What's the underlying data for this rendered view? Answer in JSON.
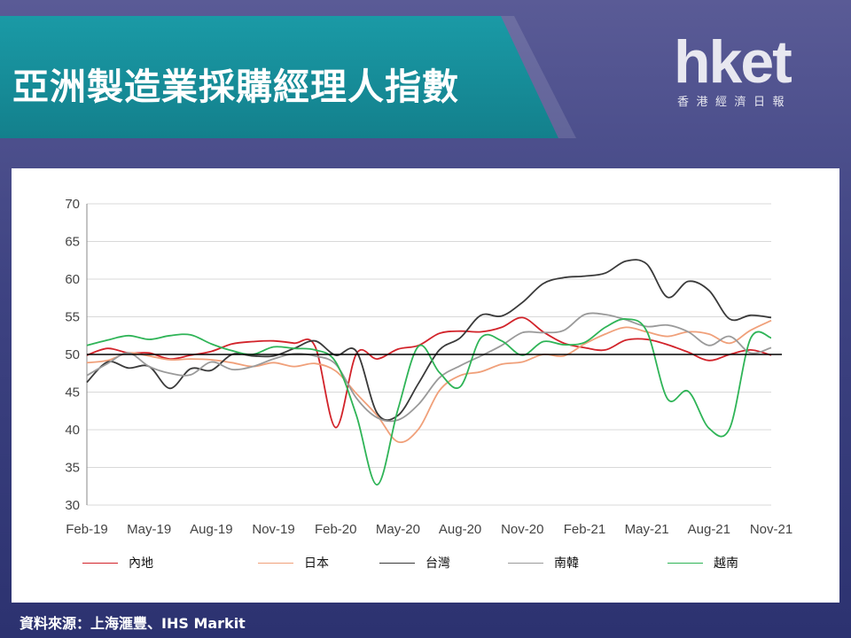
{
  "title": "亞洲製造業採購經理人指數",
  "logo": {
    "wordmark": "hket",
    "subtitle": "香港經濟日報"
  },
  "source": "資料來源：上海滙豐、IHS Markit",
  "colors": {
    "banner": "#1a9aa6",
    "background": "#3e4382",
    "china": "#d2232a",
    "japan": "#f0a07a",
    "taiwan": "#3a3a3a",
    "korea": "#9a9a9a",
    "vietnam": "#2fb457",
    "reference_line": "#000000"
  },
  "chart_data": {
    "type": "line",
    "title": "",
    "xlabel": "",
    "ylabel": "",
    "ylim": [
      30,
      70
    ],
    "yticks": [
      30,
      35,
      40,
      45,
      50,
      55,
      60,
      65,
      70
    ],
    "grid": true,
    "reference_line": 50,
    "legend_position": "bottom",
    "x": [
      "Feb-19",
      "Mar-19",
      "Apr-19",
      "May-19",
      "Jun-19",
      "Jul-19",
      "Aug-19",
      "Sep-19",
      "Oct-19",
      "Nov-19",
      "Dec-19",
      "Jan-20",
      "Feb-20",
      "Mar-20",
      "Apr-20",
      "May-20",
      "Jun-20",
      "Jul-20",
      "Aug-20",
      "Sep-20",
      "Oct-20",
      "Nov-20",
      "Dec-20",
      "Jan-21",
      "Feb-21",
      "Mar-21",
      "Apr-21",
      "May-21",
      "Jun-21",
      "Jul-21",
      "Aug-21",
      "Sep-21",
      "Oct-21",
      "Nov-21"
    ],
    "xtick_labels": [
      "Feb-19",
      "May-19",
      "Aug-19",
      "Nov-19",
      "Feb-20",
      "May-20",
      "Aug-20",
      "Nov-20",
      "Feb-21",
      "May-21",
      "Aug-21",
      "Nov-21"
    ],
    "series": [
      {
        "name": "內地",
        "color": "#d2232a",
        "values": [
          49.9,
          50.8,
          50.2,
          50.2,
          49.4,
          49.9,
          50.4,
          51.4,
          51.7,
          51.8,
          51.5,
          51.1,
          40.3,
          50.1,
          49.4,
          50.7,
          51.2,
          52.8,
          53.1,
          53.0,
          53.6,
          54.9,
          53.0,
          51.5,
          50.9,
          50.6,
          51.9,
          52.0,
          51.3,
          50.3,
          49.2,
          50.0,
          50.6,
          49.9
        ]
      },
      {
        "name": "日本",
        "color": "#f0a07a",
        "values": [
          48.9,
          49.2,
          50.2,
          49.8,
          49.3,
          49.4,
          49.3,
          48.9,
          48.4,
          48.9,
          48.4,
          48.8,
          47.8,
          44.8,
          41.9,
          38.4,
          40.1,
          45.2,
          47.2,
          47.7,
          48.7,
          49.0,
          50.0,
          49.8,
          51.4,
          52.7,
          53.6,
          53.0,
          52.4,
          53.0,
          52.7,
          51.5,
          53.2,
          54.5
        ]
      },
      {
        "name": "台灣",
        "color": "#3a3a3a",
        "values": [
          46.3,
          49.0,
          48.2,
          48.4,
          45.5,
          48.1,
          47.9,
          50.0,
          49.8,
          49.8,
          50.8,
          51.8,
          49.9,
          50.4,
          42.2,
          41.9,
          46.2,
          50.6,
          52.2,
          55.2,
          55.1,
          56.9,
          59.4,
          60.2,
          60.4,
          60.8,
          62.4,
          62.0,
          57.6,
          59.7,
          58.5,
          54.7,
          55.2,
          54.9
        ]
      },
      {
        "name": "南韓",
        "color": "#9a9a9a",
        "values": [
          47.2,
          48.8,
          50.2,
          48.4,
          47.5,
          47.3,
          49.0,
          48.0,
          48.4,
          49.4,
          50.1,
          49.8,
          48.7,
          44.2,
          41.6,
          41.3,
          43.4,
          46.9,
          48.5,
          49.8,
          51.2,
          52.9,
          52.9,
          53.2,
          55.3,
          55.3,
          54.6,
          53.7,
          53.9,
          53.0,
          51.2,
          52.4,
          50.2,
          50.9
        ]
      },
      {
        "name": "越南",
        "color": "#2fb457",
        "values": [
          51.2,
          51.9,
          52.5,
          52.0,
          52.5,
          52.6,
          51.4,
          50.5,
          50.0,
          51.0,
          50.8,
          50.6,
          49.0,
          41.9,
          32.7,
          42.7,
          51.1,
          47.6,
          45.7,
          52.2,
          51.8,
          49.9,
          51.7,
          51.3,
          51.6,
          53.6,
          54.7,
          53.1,
          44.1,
          45.1,
          40.2,
          40.2,
          52.1,
          52.2
        ]
      }
    ]
  }
}
